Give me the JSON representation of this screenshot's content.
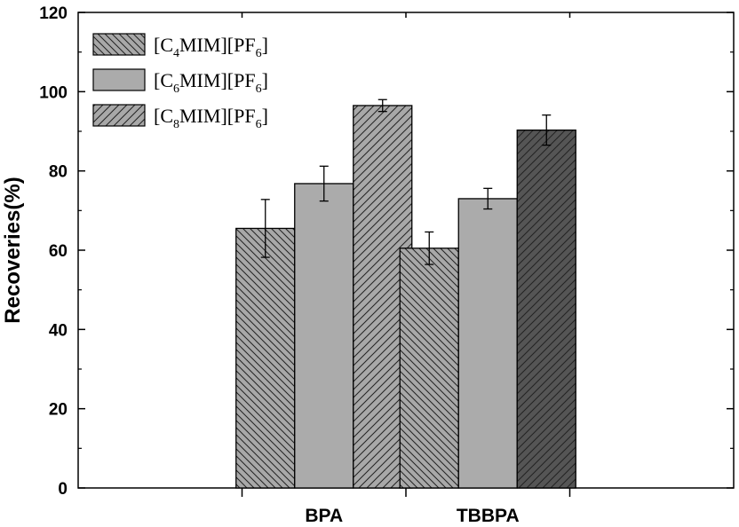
{
  "chart_data": {
    "type": "bar",
    "categories": [
      "BPA",
      "TBBPA"
    ],
    "ylabel": "Recoveries(%)",
    "xlabel": "",
    "ylim": [
      0,
      120
    ],
    "yticks": [
      0,
      20,
      40,
      60,
      80,
      100,
      120
    ],
    "legend_position": "top-left",
    "series": [
      {
        "name": "[C4MIM][PF6]",
        "legend_parts": {
          "pre": "[C",
          "sub1": "4",
          "mid": "MIM][PF",
          "sub2": "6",
          "post": "]"
        },
        "values": [
          65.5,
          60.5
        ],
        "errors": [
          7.3,
          4.1
        ],
        "fill": "#a8a8a8",
        "pattern": "backslash"
      },
      {
        "name": "[C6MIM][PF6]",
        "legend_parts": {
          "pre": "[C",
          "sub1": "6",
          "mid": "MIM][PF",
          "sub2": "6",
          "post": "]"
        },
        "values": [
          76.8,
          73.0
        ],
        "errors": [
          4.4,
          2.6
        ],
        "fill": "#ababab",
        "pattern": "none"
      },
      {
        "name": "[C8MIM][PF6]",
        "legend_parts": {
          "pre": "[C",
          "sub1": "8",
          "mid": "MIM][PF",
          "sub2": "6",
          "post": "]"
        },
        "values": [
          96.5,
          90.3
        ],
        "errors": [
          1.5,
          3.8
        ],
        "fill": "#a8a8a8",
        "pattern": "slash",
        "bar_fills": [
          "#a8a8a8",
          "#555555"
        ]
      }
    ]
  }
}
